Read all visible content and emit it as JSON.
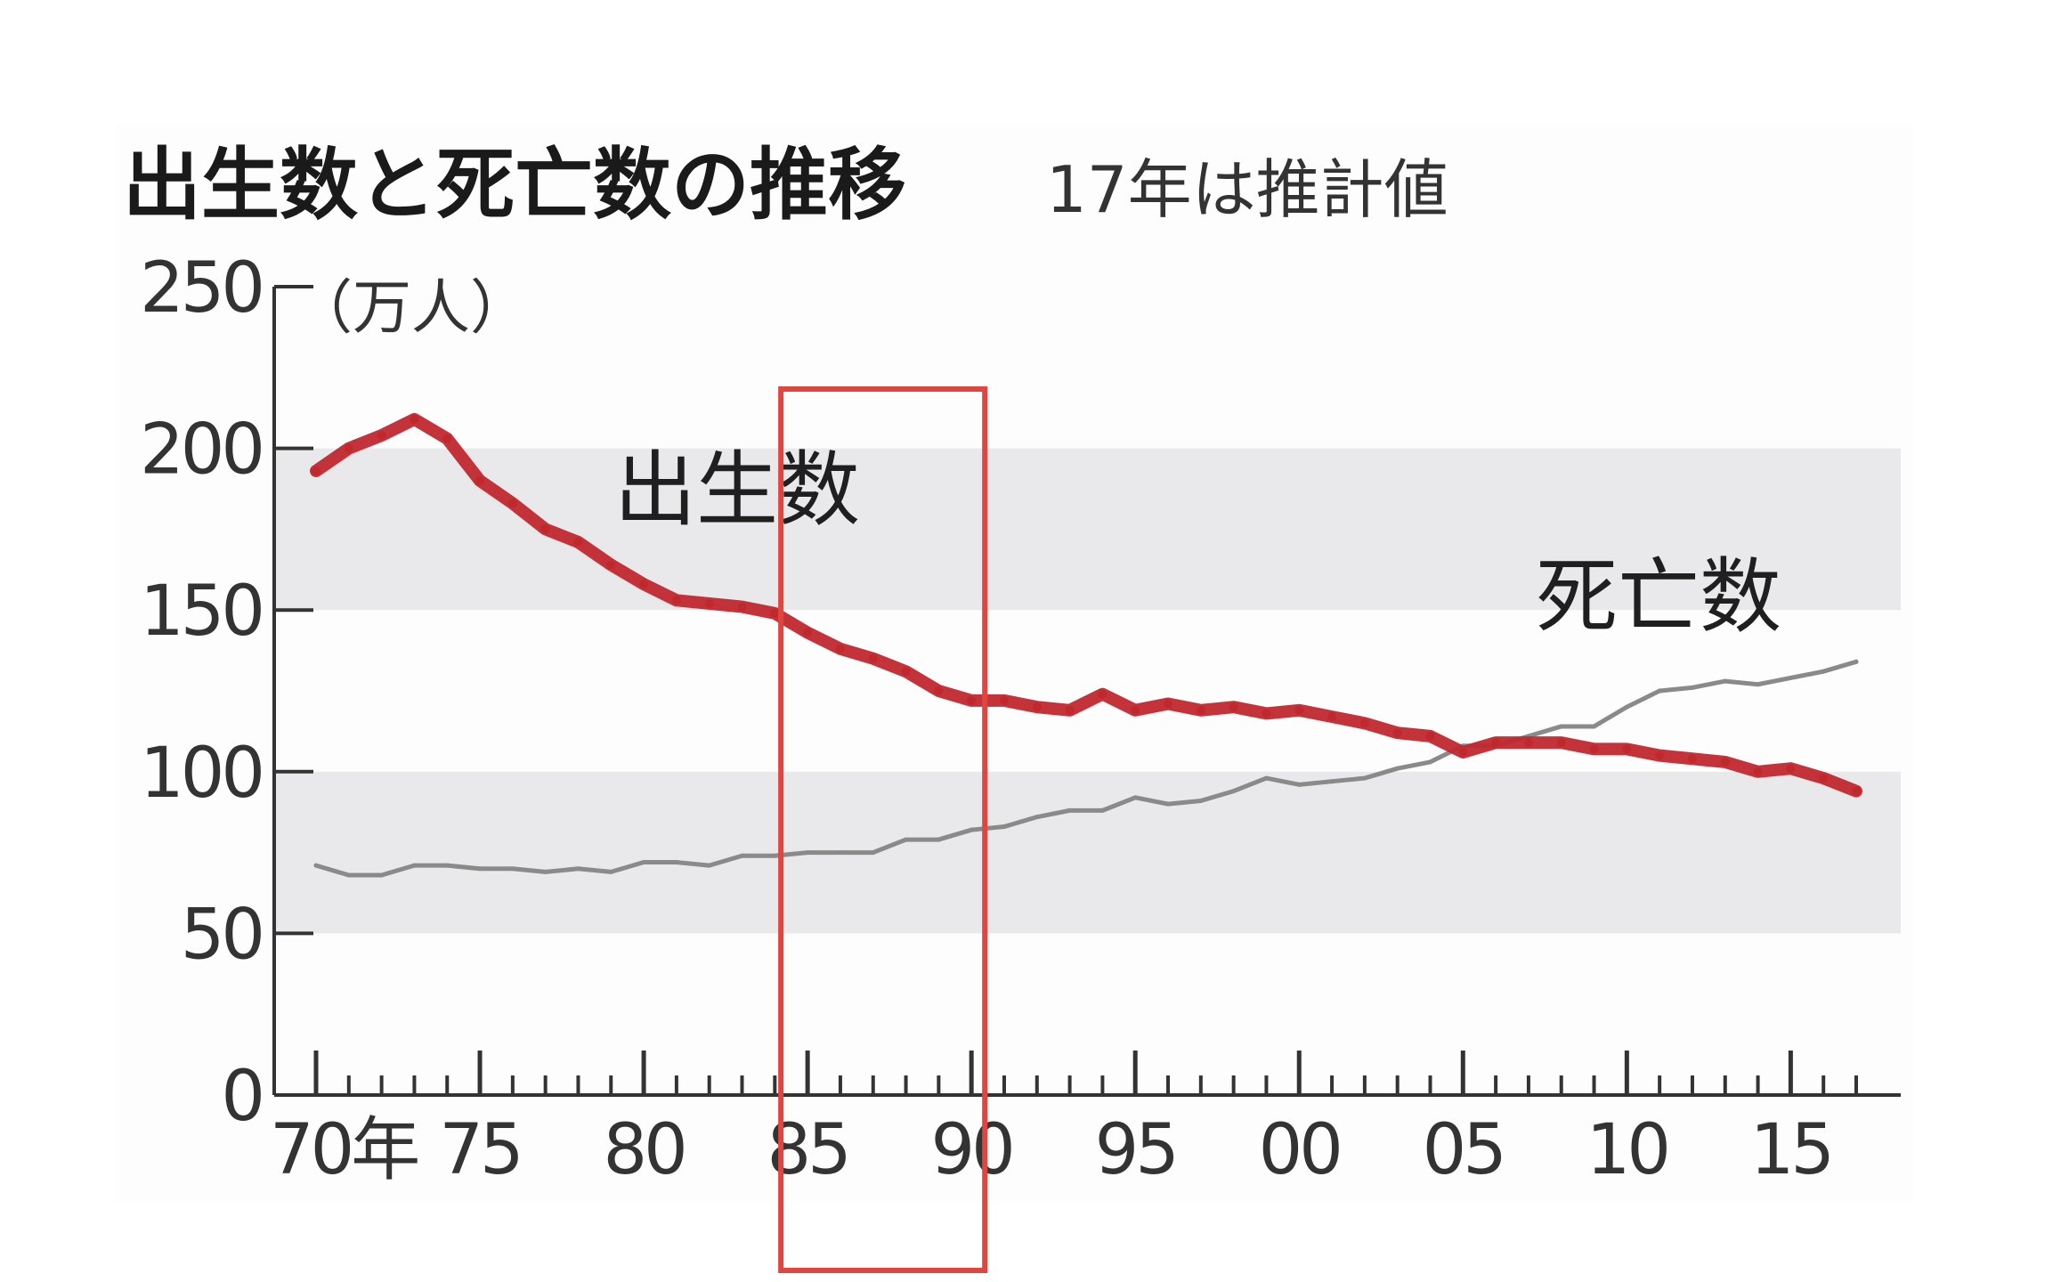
{
  "chart_data": {
    "type": "line",
    "title": "出生数と死亡数の推移",
    "subtitle": "17年は推計値",
    "unit": "（万人）",
    "xlabel": "",
    "ylabel": "",
    "ylim": [
      0,
      250
    ],
    "yticks": [
      0,
      50,
      100,
      150,
      200,
      250
    ],
    "xlim": [
      1970,
      2017
    ],
    "xticks": [
      {
        "year": 1970,
        "label": "70年"
      },
      {
        "year": 1975,
        "label": "75"
      },
      {
        "year": 1980,
        "label": "80"
      },
      {
        "year": 1985,
        "label": "85"
      },
      {
        "year": 1990,
        "label": "90"
      },
      {
        "year": 1995,
        "label": "95"
      },
      {
        "year": 2000,
        "label": "00"
      },
      {
        "year": 2005,
        "label": "05"
      },
      {
        "year": 2010,
        "label": "10"
      },
      {
        "year": 2015,
        "label": "15"
      }
    ],
    "background_bands": [
      [
        50,
        100
      ],
      [
        150,
        200
      ]
    ],
    "highlight_box": {
      "x_range": [
        1985,
        1990
      ]
    },
    "x": [
      1970,
      1971,
      1972,
      1973,
      1974,
      1975,
      1976,
      1977,
      1978,
      1979,
      1980,
      1981,
      1982,
      1983,
      1984,
      1985,
      1986,
      1987,
      1988,
      1989,
      1990,
      1991,
      1992,
      1993,
      1994,
      1995,
      1996,
      1997,
      1998,
      1999,
      2000,
      2001,
      2002,
      2003,
      2004,
      2005,
      2006,
      2007,
      2008,
      2009,
      2010,
      2011,
      2012,
      2013,
      2014,
      2015,
      2016,
      2017
    ],
    "series": [
      {
        "name": "出生数",
        "color": "#c0282e",
        "values": [
          193,
          200,
          204,
          209,
          203,
          190,
          183,
          175,
          171,
          164,
          158,
          153,
          152,
          151,
          149,
          143,
          138,
          135,
          131,
          125,
          122,
          122,
          120,
          119,
          124,
          119,
          121,
          119,
          120,
          118,
          119,
          117,
          115,
          112,
          111,
          106,
          109,
          109,
          109,
          107,
          107,
          105,
          104,
          103,
          100,
          101,
          98,
          94
        ]
      },
      {
        "name": "死亡数",
        "color": "#8a8a8a",
        "values": [
          71,
          68,
          68,
          71,
          71,
          70,
          70,
          69,
          70,
          69,
          72,
          72,
          71,
          74,
          74,
          75,
          75,
          75,
          79,
          79,
          82,
          83,
          86,
          88,
          88,
          92,
          90,
          91,
          94,
          98,
          96,
          97,
          98,
          101,
          103,
          108,
          108,
          111,
          114,
          114,
          120,
          125,
          126,
          128,
          127,
          129,
          131,
          134
        ]
      }
    ]
  }
}
